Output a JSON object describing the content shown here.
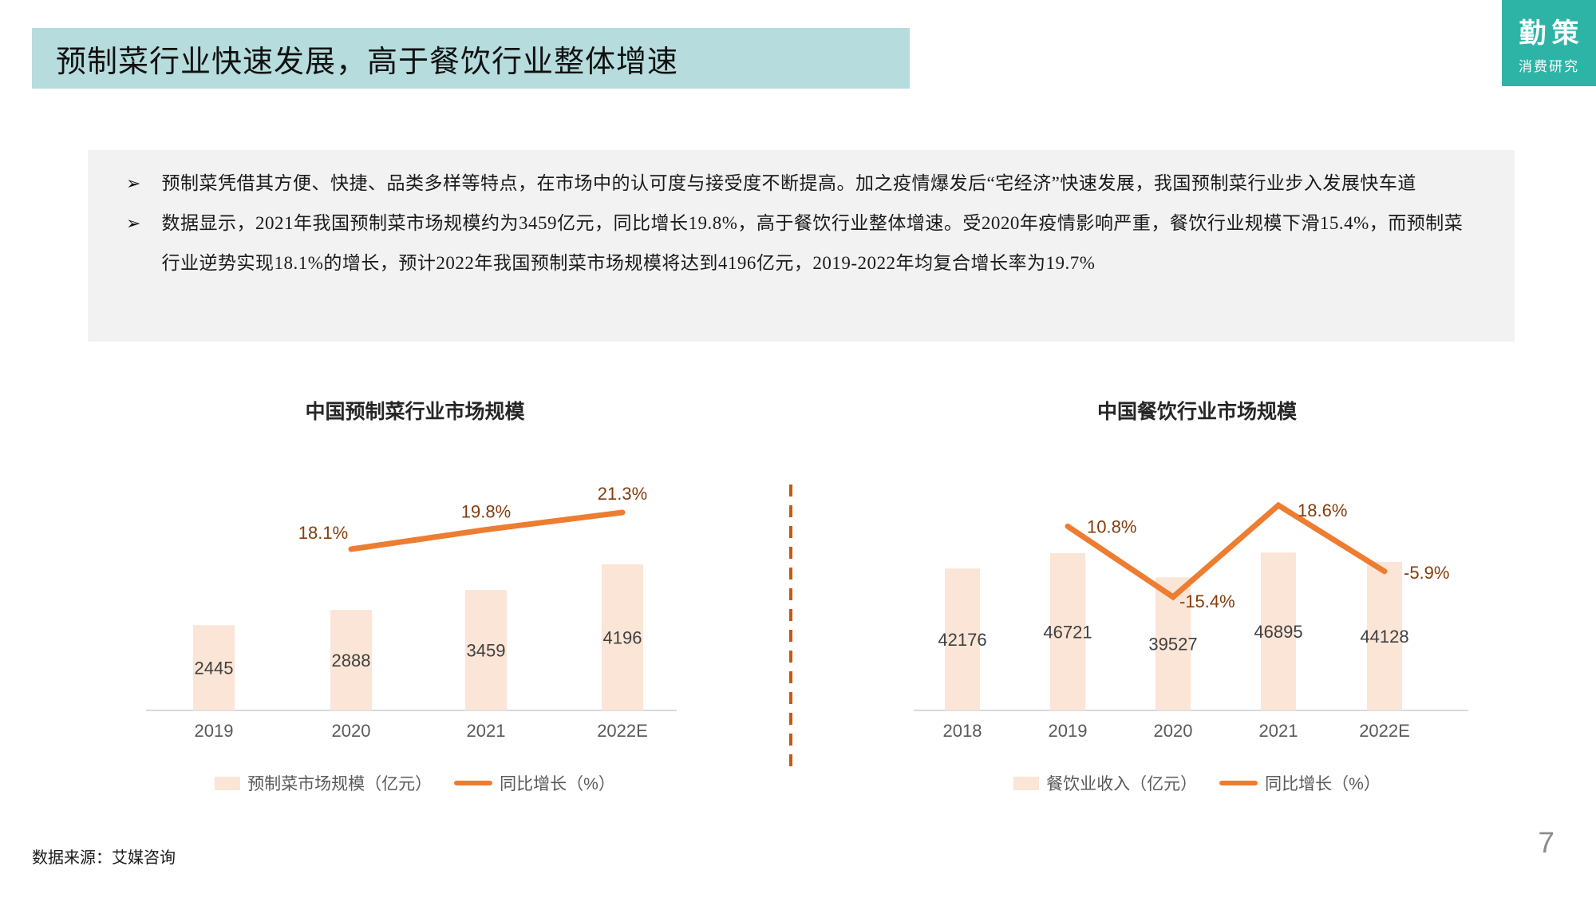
{
  "slide": {
    "title": "预制菜行业快速发展，高于餐饮行业整体增速",
    "source": "数据来源：艾媒咨询",
    "page_number": "7"
  },
  "logo": {
    "line1": "勤策",
    "line2": "消费研究"
  },
  "bullets": [
    "预制菜凭借其方便、快捷、品类多样等特点，在市场中的认可度与接受度不断提高。加之疫情爆发后“宅经济”快速发展，我国预制菜行业步入发展快车道",
    "数据显示，2021年我国预制菜市场规模约为3459亿元，同比增长19.8%，高于餐饮行业整体增速。受2020年疫情影响严重，餐饮行业规模下滑15.4%，而预制菜行业逆势实现18.1%的增长，预计2022年我国预制菜市场规模将达到4196亿元，2019-2022年均复合增长率为19.7%"
  ],
  "chart_data": [
    {
      "type": "bar",
      "title": "中国预制菜行业市场规模",
      "categories": [
        "2019",
        "2020",
        "2021",
        "2022E"
      ],
      "series": [
        {
          "name": "预制菜市场规模（亿元）",
          "type": "bar",
          "values": [
            2445,
            2888,
            3459,
            4196
          ]
        },
        {
          "name": "同比增长（%）",
          "type": "line",
          "values": [
            null,
            18.1,
            19.8,
            21.3
          ],
          "labels": [
            null,
            "18.1%",
            "19.8%",
            "21.3%"
          ]
        }
      ],
      "legend_position": "bottom",
      "value_labels": "inside-center",
      "grid": false
    },
    {
      "type": "bar",
      "title": "中国餐饮行业市场规模",
      "categories": [
        "2018",
        "2019",
        "2020",
        "2021",
        "2022E"
      ],
      "series": [
        {
          "name": "餐饮业收入（亿元）",
          "type": "bar",
          "values": [
            42176,
            46721,
            39527,
            46895,
            44128
          ]
        },
        {
          "name": "同比增长（%）",
          "type": "line",
          "values": [
            null,
            10.8,
            -15.4,
            18.6,
            -5.9
          ],
          "labels": [
            null,
            "10.8%",
            "-15.4%",
            "18.6%",
            "-5.9%"
          ]
        }
      ],
      "legend_position": "bottom",
      "value_labels": "inside-center",
      "grid": false
    }
  ],
  "colors": {
    "banner_bg": "#B6DCDD",
    "logo_bg": "#2EB4A7",
    "panel_bg": "#F2F2F2",
    "bar_fill": "#FBE5D6",
    "line": "#ED7D31",
    "growth_label": "#843C0C",
    "divider": "#C55A11",
    "value_label": "#404040",
    "tick_label": "#595959",
    "axis": "#D9D9D9"
  }
}
